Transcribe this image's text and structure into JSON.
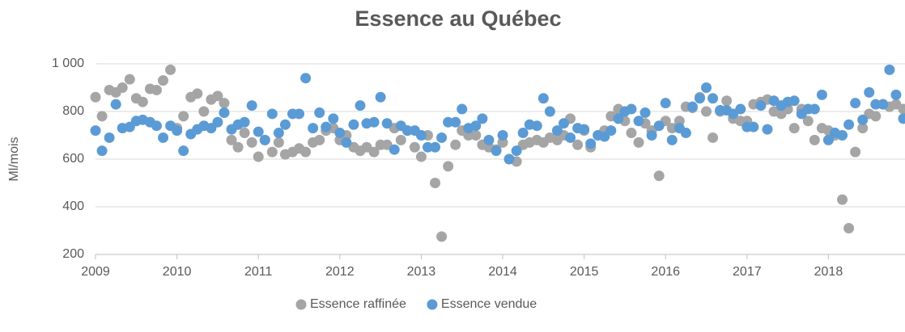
{
  "chart_data": {
    "type": "scatter",
    "title": "Essence au Québec",
    "ylabel": "Ml/mois",
    "xlim": [
      2009,
      2018.94
    ],
    "xticks": [
      2009,
      2010,
      2011,
      2012,
      2013,
      2014,
      2015,
      2016,
      2017,
      2018
    ],
    "ylim": [
      200,
      1000
    ],
    "yticks": [
      200,
      400,
      600,
      800,
      {
        "value": 1000,
        "label": "1 000"
      }
    ],
    "grid": true,
    "legend": "bottom",
    "x": [
      2009.0,
      2009.08,
      2009.17,
      2009.25,
      2009.33,
      2009.42,
      2009.5,
      2009.58,
      2009.67,
      2009.75,
      2009.83,
      2009.92,
      2010.0,
      2010.08,
      2010.17,
      2010.25,
      2010.33,
      2010.42,
      2010.5,
      2010.58,
      2010.67,
      2010.75,
      2010.83,
      2010.92,
      2011.0,
      2011.08,
      2011.17,
      2011.25,
      2011.33,
      2011.42,
      2011.5,
      2011.58,
      2011.67,
      2011.75,
      2011.83,
      2011.92,
      2012.0,
      2012.08,
      2012.17,
      2012.25,
      2012.33,
      2012.42,
      2012.5,
      2012.58,
      2012.67,
      2012.75,
      2012.83,
      2012.92,
      2013.0,
      2013.08,
      2013.17,
      2013.25,
      2013.33,
      2013.42,
      2013.5,
      2013.58,
      2013.67,
      2013.75,
      2013.83,
      2013.92,
      2014.0,
      2014.08,
      2014.17,
      2014.25,
      2014.33,
      2014.42,
      2014.5,
      2014.58,
      2014.67,
      2014.75,
      2014.83,
      2014.92,
      2015.0,
      2015.08,
      2015.17,
      2015.25,
      2015.33,
      2015.42,
      2015.5,
      2015.58,
      2015.67,
      2015.75,
      2015.83,
      2015.92,
      2016.0,
      2016.08,
      2016.17,
      2016.25,
      2016.33,
      2016.42,
      2016.5,
      2016.58,
      2016.67,
      2016.75,
      2016.83,
      2016.92,
      2017.0,
      2017.08,
      2017.17,
      2017.25,
      2017.33,
      2017.42,
      2017.5,
      2017.58,
      2017.67,
      2017.75,
      2017.83,
      2017.92,
      2018.0,
      2018.08,
      2018.17,
      2018.25,
      2018.33,
      2018.42,
      2018.5,
      2018.58,
      2018.67,
      2018.75,
      2018.83,
      2018.92
    ],
    "series": [
      {
        "name": "Essence raffinée",
        "color": "#a5a5a5",
        "values": [
          860,
          780,
          890,
          880,
          900,
          935,
          855,
          840,
          895,
          890,
          930,
          975,
          730,
          780,
          860,
          875,
          800,
          850,
          865,
          835,
          680,
          650,
          710,
          670,
          610,
          680,
          630,
          670,
          620,
          630,
          645,
          630,
          670,
          680,
          720,
          730,
          680,
          700,
          650,
          635,
          650,
          630,
          660,
          660,
          730,
          680,
          720,
          650,
          610,
          700,
          500,
          275,
          570,
          660,
          720,
          700,
          700,
          660,
          650,
          640,
          670,
          600,
          590,
          660,
          670,
          680,
          670,
          690,
          680,
          700,
          770,
          660,
          720,
          650,
          700,
          720,
          780,
          810,
          760,
          710,
          670,
          750,
          720,
          530,
          760,
          730,
          760,
          820,
          815,
          860,
          800,
          690,
          800,
          845,
          770,
          760,
          760,
          830,
          840,
          850,
          800,
          790,
          810,
          730,
          810,
          760,
          680,
          730,
          720,
          700,
          430,
          310,
          630,
          730,
          790,
          780,
          830,
          820,
          830,
          810
        ]
      },
      {
        "name": "Essence vendue",
        "color": "#5b9bd5",
        "values": [
          720,
          635,
          690,
          830,
          730,
          735,
          760,
          765,
          755,
          740,
          690,
          740,
          720,
          635,
          705,
          725,
          740,
          730,
          755,
          795,
          725,
          745,
          755,
          825,
          715,
          680,
          790,
          710,
          745,
          790,
          790,
          940,
          730,
          795,
          735,
          770,
          710,
          670,
          745,
          825,
          750,
          755,
          860,
          750,
          640,
          740,
          720,
          720,
          700,
          650,
          650,
          690,
          755,
          755,
          810,
          730,
          740,
          770,
          680,
          635,
          700,
          600,
          635,
          710,
          745,
          740,
          855,
          800,
          720,
          750,
          690,
          730,
          725,
          665,
          700,
          695,
          720,
          770,
          800,
          810,
          760,
          795,
          700,
          740,
          835,
          680,
          730,
          710,
          820,
          855,
          900,
          855,
          805,
          805,
          790,
          810,
          735,
          735,
          825,
          725,
          845,
          825,
          840,
          845,
          790,
          810,
          810,
          870,
          680,
          710,
          700,
          745,
          835,
          765,
          880,
          830,
          830,
          975,
          870,
          770
        ]
      }
    ]
  }
}
